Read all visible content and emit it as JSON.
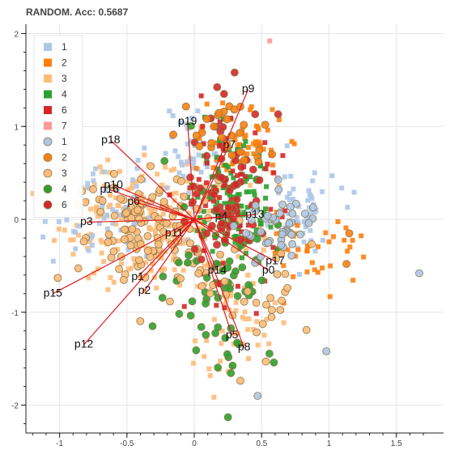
{
  "chart_data": {
    "type": "scatter",
    "title": "RANDOM. Acc: 0.5687",
    "xlabel": "",
    "ylabel": "",
    "xlim": [
      -1.25,
      1.85
    ],
    "ylim": [
      -2.3,
      2.1
    ],
    "x_ticks": [
      -1,
      -0.5,
      0,
      0.5,
      1,
      1.5
    ],
    "x_tick_labels": [
      "-1",
      "-0.5",
      "0",
      "0.5",
      "1",
      "1.5"
    ],
    "y_ticks": [
      2,
      1,
      0,
      -1,
      -2
    ],
    "y_tick_labels": [
      "2",
      "1",
      "0",
      "-1",
      "-2"
    ],
    "grid": true,
    "legend_position": "top-left",
    "legend": [
      {
        "label": "1",
        "marker": "square",
        "color": "#aec7e8"
      },
      {
        "label": "2",
        "marker": "square",
        "color": "#ff7f0e"
      },
      {
        "label": "3",
        "marker": "square",
        "color": "#ffbb78"
      },
      {
        "label": "4",
        "marker": "square",
        "color": "#2ca02c"
      },
      {
        "label": "6",
        "marker": "square",
        "color": "#d62728"
      },
      {
        "label": "7",
        "marker": "square",
        "color": "#ff9896"
      },
      {
        "label": "1",
        "marker": "circle",
        "color": "#aec7e8"
      },
      {
        "label": "2",
        "marker": "circle",
        "color": "#ff7f0e"
      },
      {
        "label": "3",
        "marker": "circle",
        "color": "#ffbb78"
      },
      {
        "label": "4",
        "marker": "circle",
        "color": "#2ca02c"
      },
      {
        "label": "6",
        "marker": "circle",
        "color": "#d62728"
      }
    ],
    "clusters": [
      {
        "class": "3",
        "marker": "square",
        "color": "#ffbb78",
        "cx": -0.3,
        "cy": -0.05,
        "sx": 0.35,
        "sy": 0.35,
        "n": 240
      },
      {
        "class": "3",
        "marker": "square",
        "color": "#ffbb78",
        "cx": 0.3,
        "cy": -1.2,
        "sx": 0.15,
        "sy": 0.3,
        "n": 45
      },
      {
        "class": "1",
        "marker": "square",
        "color": "#aec7e8",
        "cx": -0.7,
        "cy": 0.05,
        "sx": 0.25,
        "sy": 0.25,
        "n": 70
      },
      {
        "class": "1",
        "marker": "square",
        "color": "#aec7e8",
        "cx": 0.0,
        "cy": 0.75,
        "sx": 0.15,
        "sy": 0.25,
        "n": 45
      },
      {
        "class": "1",
        "marker": "square",
        "color": "#aec7e8",
        "cx": 0.75,
        "cy": 0.05,
        "sx": 0.15,
        "sy": 0.25,
        "n": 60
      },
      {
        "class": "2",
        "marker": "square",
        "color": "#ff7f0e",
        "cx": 0.35,
        "cy": 0.8,
        "sx": 0.15,
        "sy": 0.2,
        "n": 55
      },
      {
        "class": "2",
        "marker": "square",
        "color": "#ff7f0e",
        "cx": 0.9,
        "cy": -0.3,
        "sx": 0.2,
        "sy": 0.2,
        "n": 40
      },
      {
        "class": "4",
        "marker": "square",
        "color": "#2ca02c",
        "cx": 0.3,
        "cy": 0.1,
        "sx": 0.15,
        "sy": 0.35,
        "n": 110
      },
      {
        "class": "6",
        "marker": "square",
        "color": "#d62728",
        "cx": 0.25,
        "cy": 0.15,
        "sx": 0.2,
        "sy": 0.45,
        "n": 80
      },
      {
        "class": "3",
        "marker": "circle",
        "color": "#ffbb78",
        "cx": -0.3,
        "cy": -0.1,
        "sx": 0.3,
        "sy": 0.3,
        "n": 120
      },
      {
        "class": "4",
        "marker": "circle",
        "color": "#2ca02c",
        "cx": 0.2,
        "cy": -0.55,
        "sx": 0.2,
        "sy": 0.55,
        "n": 70
      },
      {
        "class": "6",
        "marker": "circle",
        "color": "#d62728",
        "cx": 0.25,
        "cy": 0.35,
        "sx": 0.15,
        "sy": 0.45,
        "n": 70
      },
      {
        "class": "2",
        "marker": "circle",
        "color": "#ff7f0e",
        "cx": 0.25,
        "cy": 0.9,
        "sx": 0.15,
        "sy": 0.2,
        "n": 30
      },
      {
        "class": "1",
        "marker": "circle",
        "color": "#aec7e8",
        "cx": 0.65,
        "cy": -0.1,
        "sx": 0.15,
        "sy": 0.2,
        "n": 45
      },
      {
        "class": "3",
        "marker": "circle",
        "color": "#ffbb78",
        "cx": 0.5,
        "cy": -0.9,
        "sx": 0.2,
        "sy": 0.3,
        "n": 30
      }
    ],
    "points": [
      {
        "class": "1",
        "marker": "circle",
        "color": "#aec7e8",
        "x": 1.67,
        "y": -0.58
      },
      {
        "class": "2",
        "marker": "circle",
        "color": "#ff7f0e",
        "x": 1.15,
        "y": -0.15
      },
      {
        "class": "2",
        "marker": "circle",
        "color": "#ff7f0e",
        "x": 1.13,
        "y": -0.48
      },
      {
        "class": "4",
        "marker": "circle",
        "color": "#2ca02c",
        "x": 0.25,
        "y": -2.13
      },
      {
        "class": "7",
        "marker": "square",
        "color": "#ff9896",
        "x": 0.56,
        "y": 1.92
      },
      {
        "class": "1",
        "marker": "circle",
        "color": "#aec7e8",
        "x": 0.98,
        "y": -1.42
      },
      {
        "class": "1",
        "marker": "circle",
        "color": "#aec7e8",
        "x": 0.47,
        "y": -1.9
      }
    ],
    "vectors": [
      {
        "label": "p1",
        "x": -0.42,
        "y": -0.62
      },
      {
        "label": "p2",
        "x": -0.37,
        "y": -0.77
      },
      {
        "label": "p3",
        "x": -0.8,
        "y": -0.03
      },
      {
        "label": "p4",
        "x": 0.2,
        "y": 0.03
      },
      {
        "label": "p5",
        "x": 0.28,
        "y": -1.25
      },
      {
        "label": "p6",
        "x": -0.45,
        "y": 0.19
      },
      {
        "label": "p7",
        "x": 0.26,
        "y": 0.8
      },
      {
        "label": "p8",
        "x": 0.37,
        "y": -1.38
      },
      {
        "label": "p9",
        "x": 0.4,
        "y": 1.4
      },
      {
        "label": "p10",
        "x": -0.6,
        "y": 0.37
      },
      {
        "label": "p11",
        "x": -0.15,
        "y": -0.15
      },
      {
        "label": "p12",
        "x": -0.82,
        "y": -1.35
      },
      {
        "label": "p13",
        "x": 0.45,
        "y": 0.05
      },
      {
        "label": "p14",
        "x": 0.17,
        "y": -0.55
      },
      {
        "label": "p15",
        "x": -1.05,
        "y": -0.8
      },
      {
        "label": "p16",
        "x": -0.63,
        "y": 0.32
      },
      {
        "label": "p17",
        "x": 0.6,
        "y": -0.45
      },
      {
        "label": "p18",
        "x": -0.62,
        "y": 0.85
      },
      {
        "label": "p19",
        "x": -0.05,
        "y": 1.05
      },
      {
        "label": "p0",
        "x": 0.55,
        "y": -0.55
      }
    ]
  }
}
